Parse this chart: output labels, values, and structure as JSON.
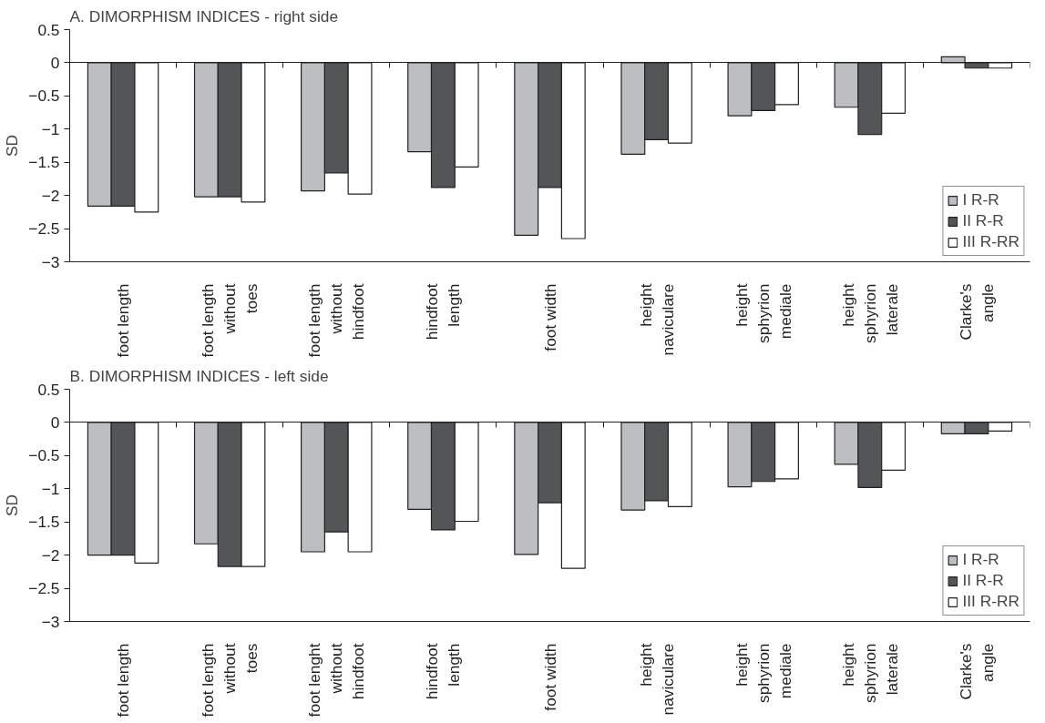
{
  "chart_data": [
    {
      "type": "bar",
      "title": "A. DIMORPHISM  INDICES - right side",
      "ylabel": "SD",
      "categories": [
        "foot length",
        "foot length\nwithout\ntoes",
        "foot length\nwithout\nhindfoot",
        "hindfoot\nlength",
        "foot width",
        "height\nnaviculare",
        "height\nsphyrion\nmediale",
        "height\nsphyrion\nlaterale",
        "Clarke's\nangle"
      ],
      "series": [
        {
          "name": "I R-R",
          "color": "#bcbec1",
          "values": [
            -2.16,
            -2.02,
            -1.93,
            -1.34,
            -2.6,
            -1.38,
            -0.8,
            -0.67,
            0.09
          ]
        },
        {
          "name": "II R-R",
          "color": "#545557",
          "values": [
            -2.16,
            -2.02,
            -1.66,
            -1.88,
            -1.88,
            -1.16,
            -0.72,
            -1.08,
            -0.08
          ]
        },
        {
          "name": "III R-RR",
          "color": "#ffffff",
          "values": [
            -2.25,
            -2.1,
            -1.98,
            -1.57,
            -2.65,
            -1.21,
            -0.63,
            -0.76,
            -0.08
          ]
        }
      ],
      "ylim": [
        -3,
        0.5
      ],
      "yticks": [
        {
          "value": -3,
          "label": "−3"
        },
        {
          "value": -2.5,
          "label": "−2.5"
        },
        {
          "value": -2,
          "label": "−2"
        },
        {
          "value": -1.5,
          "label": "−1.5"
        },
        {
          "value": -1,
          "label": "−1"
        },
        {
          "value": -0.5,
          "label": "−0.5"
        },
        0,
        0.5
      ],
      "legend": "bottom right"
    },
    {
      "type": "bar",
      "title": "B. DIMORPHISM  INDICES - left side",
      "ylabel": "SD",
      "categories": [
        "foot length",
        "foot length\nwithout\ntoes",
        "foot lenght\nwithout\nhindfoot",
        "hindfoot\nlength",
        "foot width",
        "height\nnaviculare",
        "height\nsphyrion\nmediale",
        "height\nsphyrion\nlaterale",
        "Clarke's\nangle"
      ],
      "series": [
        {
          "name": "I R-R",
          "color": "#bcbec1",
          "values": [
            -2.0,
            -1.83,
            -1.95,
            -1.31,
            -1.99,
            -1.32,
            -0.97,
            -0.63,
            -0.17
          ]
        },
        {
          "name": "II R-R",
          "color": "#545557",
          "values": [
            -2.0,
            -2.17,
            -1.65,
            -1.62,
            -1.21,
            -1.18,
            -0.89,
            -0.98,
            -0.17
          ]
        },
        {
          "name": "III R-RR",
          "color": "#ffffff",
          "values": [
            -2.12,
            -2.17,
            -1.95,
            -1.49,
            -2.2,
            -1.27,
            -0.85,
            -0.72,
            -0.13
          ]
        }
      ],
      "ylim": [
        -3,
        0.5
      ],
      "yticks": [
        {
          "value": -3,
          "label": "−3"
        },
        {
          "value": -2.5,
          "label": "−2.5"
        },
        {
          "value": -2,
          "label": "−2"
        },
        {
          "value": -1.5,
          "label": "−1.5"
        },
        {
          "value": -1,
          "label": "−1"
        },
        {
          "value": -0.5,
          "label": "−0.5"
        },
        0,
        0.5
      ],
      "legend": "bottom right"
    }
  ]
}
